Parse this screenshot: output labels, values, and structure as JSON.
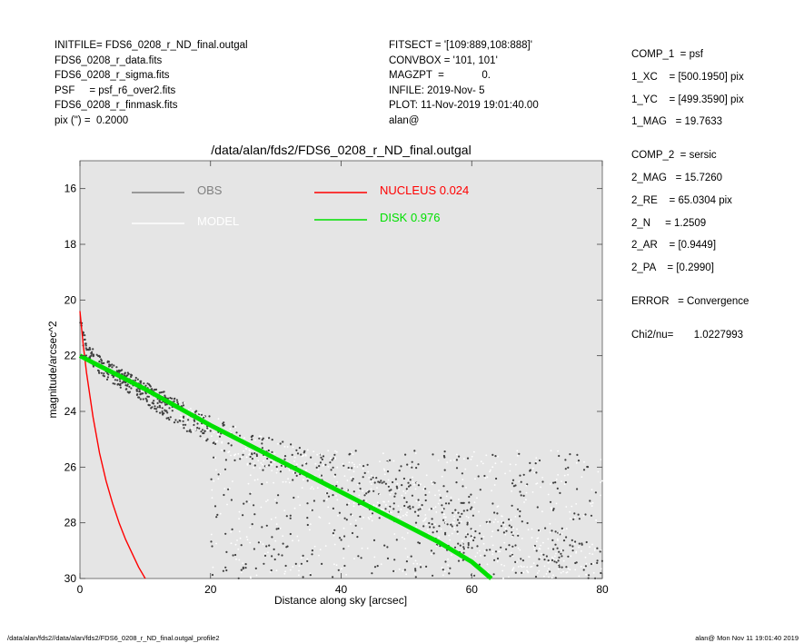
{
  "header_left": [
    "INITFILE= FDS6_0208_r_ND_final.outgal",
    "FDS6_0208_r_data.fits",
    "FDS6_0208_r_sigma.fits",
    "PSF     = psf_r6_over2.fits",
    "FDS6_0208_r_finmask.fits",
    "pix (\") =  0.2000"
  ],
  "header_mid": [
    "FITSECT = '[109:889,108:888]'",
    "CONVBOX = '101, 101'",
    "MAGZPT  =             0.",
    "INFILE: 2019-Nov- 5",
    "PLOT: 11-Nov-2019 19:01:40.00",
    "alan@"
  ],
  "header_right": {
    "comp1": [
      "COMP_1  = psf",
      "1_XC    = [500.1950] pix",
      "1_YC    = [499.3590] pix",
      "1_MAG   = 19.7633"
    ],
    "comp2": [
      "COMP_2  = sersic",
      "2_MAG   = 15.7260",
      "2_RE    = 65.0304 pix",
      "2_N     = 1.2509",
      "2_AR    = [0.9449]",
      "2_PA    = [0.2990]"
    ],
    "error": "ERROR   = Convergence",
    "chi2": "Chi2/nu=       1.0227993"
  },
  "footer": {
    "left": "/data/alan/fds2//data/alan/fds2/FDS6_0208_r_ND_final.outgal_profile2",
    "right": "alan@  Mon Nov 11 19:01:40 2019"
  },
  "chart_data": {
    "type": "scatter",
    "title": "/data/alan/fds2/FDS6_0208_r_ND_final.outgal",
    "xlabel": "Distance along sky [arcsec]",
    "ylabel": "magnitude/arcsec^2",
    "xlim": [
      0,
      80
    ],
    "ylim": [
      30,
      15
    ],
    "y_inverted": true,
    "xticks": [
      0,
      20,
      40,
      60,
      80
    ],
    "yticks": [
      16,
      18,
      20,
      22,
      24,
      26,
      28,
      30
    ],
    "plot_background": "#e5e5e5",
    "legend": [
      {
        "label": "OBS",
        "color": "#808080"
      },
      {
        "label": "MODEL",
        "color": "#ffffff"
      },
      {
        "label": "NUCLEUS  0.024",
        "color": "#ff0000"
      },
      {
        "label": "DISK  0.976",
        "color": "#00e000"
      }
    ],
    "series": [
      {
        "name": "OBS",
        "kind": "points",
        "color": "#404040",
        "trend_x": [
          0,
          1,
          3,
          5,
          10,
          15,
          20,
          25,
          30,
          40,
          50,
          60,
          80
        ],
        "trend_y": [
          20.8,
          21.8,
          22.3,
          22.6,
          23.3,
          24.0,
          24.6,
          25.2,
          25.6,
          26.4,
          27.2,
          28.2,
          30.0
        ],
        "floor_y": 25.4
      },
      {
        "name": "NUCLEUS  0.024",
        "kind": "line",
        "color": "#ff0000",
        "x": [
          0,
          0.5,
          1,
          2,
          3,
          4,
          5,
          6,
          7,
          8,
          9,
          10
        ],
        "y": [
          20.4,
          21.6,
          22.6,
          24.2,
          25.5,
          26.5,
          27.3,
          28.0,
          28.6,
          29.1,
          29.6,
          30.0
        ]
      },
      {
        "name": "DISK  0.976",
        "kind": "line",
        "color": "#00e000",
        "x": [
          0,
          2,
          5,
          10,
          15,
          20,
          25,
          30,
          35,
          40,
          45,
          50,
          55,
          60,
          63
        ],
        "y": [
          22.0,
          22.25,
          22.6,
          23.2,
          23.85,
          24.5,
          25.1,
          25.7,
          26.3,
          26.9,
          27.5,
          28.1,
          28.7,
          29.4,
          30.0
        ]
      }
    ]
  }
}
